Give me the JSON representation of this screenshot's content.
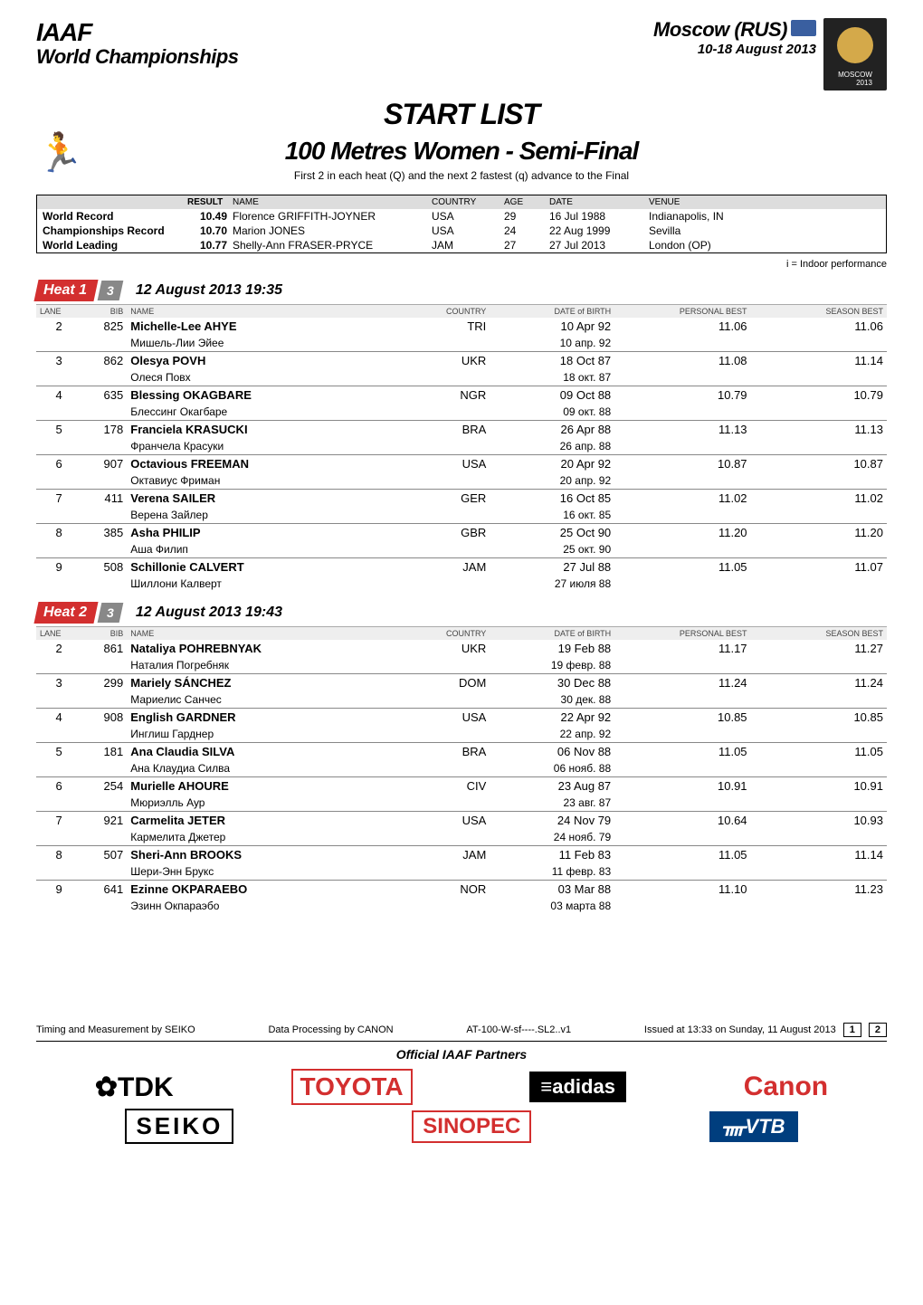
{
  "header": {
    "org": "IAAF",
    "event": "World Championships",
    "city": "Moscow (RUS)",
    "dates": "10-18 August 2013"
  },
  "title": {
    "main": "START LIST",
    "event": "100 Metres Women - Semi-Final",
    "sub": "First 2 in each heat (Q) and the next 2 fastest (q) advance to the Final"
  },
  "records_head": {
    "result": "RESULT",
    "name": "NAME",
    "country": "COUNTRY",
    "age": "AGE",
    "date": "DATE",
    "venue": "VENUE"
  },
  "records": [
    {
      "label": "World Record",
      "result": "10.49",
      "name": "Florence GRIFFITH-JOYNER",
      "country": "USA",
      "age": "29",
      "date": "16 Jul 1988",
      "venue": "Indianapolis, IN"
    },
    {
      "label": "Championships Record",
      "result": "10.70",
      "name": "Marion JONES",
      "country": "USA",
      "age": "24",
      "date": "22 Aug 1999",
      "venue": "Sevilla"
    },
    {
      "label": "World Leading",
      "result": "10.77",
      "name": "Shelly-Ann FRASER-PRYCE",
      "country": "JAM",
      "age": "27",
      "date": "27 Jul 2013",
      "venue": "London (OP)"
    }
  ],
  "legend": "i = Indoor performance",
  "col_head": {
    "lane": "LANE",
    "bib": "BIB",
    "name": "NAME",
    "country": "COUNTRY",
    "dob": "DATE of BIRTH",
    "pb": "PERSONAL BEST",
    "sb": "SEASON BEST"
  },
  "heats": [
    {
      "label": "Heat 1",
      "ord": "3",
      "time": "12 August 2013   19:35",
      "athletes": [
        {
          "lane": "2",
          "bib": "825",
          "name": "Michelle-Lee AHYE",
          "translit": "Мишель-Лии Эйее",
          "country": "TRI",
          "dob": "10 Apr 92",
          "altdob": "10 апр. 92",
          "pb": "11.06",
          "sb": "11.06"
        },
        {
          "lane": "3",
          "bib": "862",
          "name": "Olesya POVH",
          "translit": "Олеся Повх",
          "country": "UKR",
          "dob": "18 Oct 87",
          "altdob": "18 окт. 87",
          "pb": "11.08",
          "sb": "11.14"
        },
        {
          "lane": "4",
          "bib": "635",
          "name": "Blessing OKAGBARE",
          "translit": "Блессинг Окагбаре",
          "country": "NGR",
          "dob": "09 Oct 88",
          "altdob": "09 окт. 88",
          "pb": "10.79",
          "sb": "10.79"
        },
        {
          "lane": "5",
          "bib": "178",
          "name": "Franciela KRASUCKI",
          "translit": "Франчела Красуки",
          "country": "BRA",
          "dob": "26 Apr 88",
          "altdob": "26 апр. 88",
          "pb": "11.13",
          "sb": "11.13"
        },
        {
          "lane": "6",
          "bib": "907",
          "name": "Octavious FREEMAN",
          "translit": "Октавиус Фриман",
          "country": "USA",
          "dob": "20 Apr 92",
          "altdob": "20 апр. 92",
          "pb": "10.87",
          "sb": "10.87"
        },
        {
          "lane": "7",
          "bib": "411",
          "name": "Verena SAILER",
          "translit": "Верена Зайлер",
          "country": "GER",
          "dob": "16 Oct 85",
          "altdob": "16 окт. 85",
          "pb": "11.02",
          "sb": "11.02"
        },
        {
          "lane": "8",
          "bib": "385",
          "name": "Asha PHILIP",
          "translit": "Аша Филип",
          "country": "GBR",
          "dob": "25 Oct 90",
          "altdob": "25 окт. 90",
          "pb": "11.20",
          "sb": "11.20"
        },
        {
          "lane": "9",
          "bib": "508",
          "name": "Schillonie CALVERT",
          "translit": "Шиллони Калверт",
          "country": "JAM",
          "dob": "27 Jul 88",
          "altdob": "27 июля 88",
          "pb": "11.05",
          "sb": "11.07"
        }
      ]
    },
    {
      "label": "Heat 2",
      "ord": "3",
      "time": "12 August 2013   19:43",
      "athletes": [
        {
          "lane": "2",
          "bib": "861",
          "name": "Nataliya POHREBNYAK",
          "translit": "Наталия Погребняк",
          "country": "UKR",
          "dob": "19 Feb 88",
          "altdob": "19 февр. 88",
          "pb": "11.17",
          "sb": "11.27"
        },
        {
          "lane": "3",
          "bib": "299",
          "name": "Mariely SÁNCHEZ",
          "translit": "Мариелис Санчес",
          "country": "DOM",
          "dob": "30 Dec 88",
          "altdob": "30 дек. 88",
          "pb": "11.24",
          "sb": "11.24"
        },
        {
          "lane": "4",
          "bib": "908",
          "name": "English GARDNER",
          "translit": "Инглиш Гарднер",
          "country": "USA",
          "dob": "22 Apr 92",
          "altdob": "22 апр. 92",
          "pb": "10.85",
          "sb": "10.85"
        },
        {
          "lane": "5",
          "bib": "181",
          "name": "Ana Claudia SILVA",
          "translit": "Ана Клаудиа Силва",
          "country": "BRA",
          "dob": "06 Nov 88",
          "altdob": "06 нояб. 88",
          "pb": "11.05",
          "sb": "11.05"
        },
        {
          "lane": "6",
          "bib": "254",
          "name": "Murielle AHOURE",
          "translit": "Мюриэлль Аур",
          "country": "CIV",
          "dob": "23 Aug 87",
          "altdob": "23 авг. 87",
          "pb": "10.91",
          "sb": "10.91"
        },
        {
          "lane": "7",
          "bib": "921",
          "name": "Carmelita JETER",
          "translit": "Кармелита Джетер",
          "country": "USA",
          "dob": "24 Nov 79",
          "altdob": "24 нояб. 79",
          "pb": "10.64",
          "sb": "10.93"
        },
        {
          "lane": "8",
          "bib": "507",
          "name": "Sheri-Ann BROOKS",
          "translit": "Шери-Энн Брукс",
          "country": "JAM",
          "dob": "11 Feb 83",
          "altdob": "11 февр. 83",
          "pb": "11.05",
          "sb": "11.14"
        },
        {
          "lane": "9",
          "bib": "641",
          "name": "Ezinne OKPARAEBO",
          "translit": "Эзинн Окпараэбо",
          "country": "NOR",
          "dob": "03 Mar 88",
          "altdob": "03 марта 88",
          "pb": "11.10",
          "sb": "11.23"
        }
      ]
    }
  ],
  "footer": {
    "timing": "Timing and Measurement by SEIKO",
    "data": "Data Processing by CANON",
    "code": "AT-100-W-sf----.SL2..v1",
    "issued": "Issued at 13:33 on Sunday, 11 August 2013",
    "page_cur": "1",
    "page_total": "2",
    "official": "Official IAAF Partners"
  },
  "sponsors": {
    "tdk": "✿TDK",
    "toyota": "TOYOTA",
    "adidas": "≡adidas",
    "canon": "Canon",
    "seiko": "SEIKO",
    "sinopec": "SINOPEC",
    "vtb": "ᚄVTB"
  }
}
